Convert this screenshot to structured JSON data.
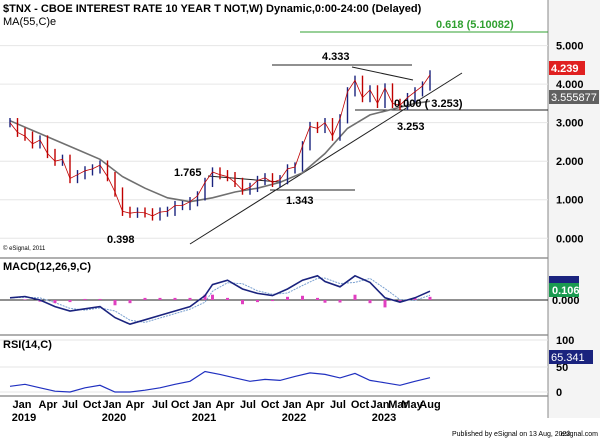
{
  "chart_data": [
    {
      "type": "line",
      "panel": "price",
      "title": "$TNX - CBOE INTEREST RATE 10 YEAR T NOT,W) Dynamic,0:00-24:00 (Delayed)",
      "indicator_label": "MA(55,C)e",
      "copyright": "© eSignal, 2011",
      "ylim": [
        -0.2,
        5.3
      ],
      "y_ticks": [
        "5.000",
        "4.000",
        "3.000",
        "2.000",
        "1.000",
        "0.000"
      ],
      "x_ticks": [
        "Jan",
        "Apr",
        "Jul",
        "Oct",
        "Jan",
        "Apr",
        "Jul",
        "Oct",
        "Jan",
        "Apr",
        "Jul",
        "Oct",
        "Jan",
        "Apr",
        "Jul",
        "Oct",
        "Jan",
        "Mar",
        "May",
        "Aug"
      ],
      "x_years": [
        "2019",
        "2020",
        "2021",
        "2022",
        "2023"
      ],
      "series": [
        {
          "name": "price",
          "color": "#c00000",
          "x": [
            "2018-12",
            "2019-01",
            "2019-02",
            "2019-03",
            "2019-04",
            "2019-05",
            "2019-06",
            "2019-07",
            "2019-08",
            "2019-09",
            "2019-10",
            "2019-11",
            "2019-12",
            "2020-01",
            "2020-02",
            "2020-03",
            "2020-04",
            "2020-05",
            "2020-06",
            "2020-07",
            "2020-08",
            "2020-09",
            "2020-10",
            "2020-11",
            "2020-12",
            "2021-01",
            "2021-02",
            "2021-03",
            "2021-04",
            "2021-05",
            "2021-06",
            "2021-07",
            "2021-08",
            "2021-09",
            "2021-10",
            "2021-11",
            "2021-12",
            "2022-01",
            "2022-02",
            "2022-03",
            "2022-04",
            "2022-05",
            "2022-06",
            "2022-07",
            "2022-08",
            "2022-09",
            "2022-10",
            "2022-11",
            "2022-12",
            "2023-01",
            "2023-02",
            "2023-03",
            "2023-04",
            "2023-05",
            "2023-06",
            "2023-07",
            "2023-08"
          ],
          "values": [
            3.0,
            2.75,
            2.65,
            2.45,
            2.55,
            2.2,
            2.0,
            2.05,
            1.55,
            1.65,
            1.75,
            1.8,
            1.9,
            1.6,
            1.2,
            0.7,
            0.65,
            0.68,
            0.66,
            0.58,
            0.68,
            0.7,
            0.85,
            0.85,
            0.95,
            1.1,
            1.45,
            1.72,
            1.65,
            1.6,
            1.45,
            1.25,
            1.32,
            1.5,
            1.57,
            1.45,
            1.52,
            1.8,
            1.85,
            2.4,
            2.9,
            2.85,
            3.0,
            2.65,
            3.1,
            3.8,
            4.1,
            3.65,
            3.85,
            3.5,
            3.9,
            3.5,
            3.45,
            3.65,
            3.8,
            3.95,
            4.239
          ]
        },
        {
          "name": "MA(55,C)e",
          "color": "#707070",
          "x": [
            "2018-12",
            "2019-03",
            "2019-06",
            "2019-09",
            "2019-12",
            "2020-03",
            "2020-06",
            "2020-09",
            "2020-12",
            "2021-03",
            "2021-06",
            "2021-09",
            "2021-12",
            "2022-03",
            "2022-06",
            "2022-09",
            "2022-12",
            "2023-03",
            "2023-06",
            "2023-08"
          ],
          "values": [
            3.05,
            2.8,
            2.55,
            2.3,
            2.05,
            1.6,
            1.3,
            1.05,
            0.95,
            1.05,
            1.2,
            1.3,
            1.45,
            1.7,
            2.2,
            2.85,
            3.2,
            3.35,
            3.5,
            3.555877
          ]
        }
      ],
      "annotations": [
        {
          "text": "0.398",
          "value": 0.398
        },
        {
          "text": "1.765",
          "value": 1.765
        },
        {
          "text": "1.343",
          "value": 1.343
        },
        {
          "text": "4.333",
          "value": 4.333
        },
        {
          "text": "3.253",
          "value": 3.253
        },
        {
          "text": "0.000 ( 3.253)",
          "value": 3.253
        },
        {
          "text": "0.618 (5.10082)",
          "value": 5.10082
        }
      ],
      "value_labels": [
        {
          "text": "4.239",
          "color": "#e02020"
        },
        {
          "text": "3.555877",
          "color": "#606060"
        }
      ]
    },
    {
      "type": "line",
      "panel": "macd",
      "title": "MACD(12,26,9,C)",
      "y_ticks": [
        "0.000"
      ],
      "value_labels": [
        {
          "text": "0.106",
          "color": "#1a9a50"
        }
      ],
      "series": [
        {
          "name": "MACD",
          "color": "#1a237e",
          "x": [
            "2018-12",
            "2019-02",
            "2019-04",
            "2019-06",
            "2019-08",
            "2019-10",
            "2019-12",
            "2020-02",
            "2020-04",
            "2020-06",
            "2020-08",
            "2020-10",
            "2020-12",
            "2021-02",
            "2021-03",
            "2021-05",
            "2021-07",
            "2021-09",
            "2021-11",
            "2022-01",
            "2022-03",
            "2022-05",
            "2022-06",
            "2022-08",
            "2022-10",
            "2022-12",
            "2023-02",
            "2023-04",
            "2023-06",
            "2023-08"
          ],
          "values": [
            0.05,
            0.08,
            0.0,
            -0.15,
            -0.25,
            -0.2,
            -0.15,
            -0.4,
            -0.55,
            -0.45,
            -0.35,
            -0.25,
            -0.15,
            0.1,
            0.35,
            0.45,
            0.25,
            0.15,
            0.1,
            0.25,
            0.45,
            0.55,
            0.42,
            0.3,
            0.55,
            0.4,
            0.05,
            -0.05,
            0.05,
            0.2
          ]
        }
      ]
    },
    {
      "type": "line",
      "panel": "rsi",
      "title": "RSI(14,C)",
      "ylim": [
        0,
        100
      ],
      "y_ticks": [
        "100",
        "50",
        "0"
      ],
      "value_labels": [
        {
          "text": "65.341",
          "color": "#1a237e"
        }
      ],
      "series": [
        {
          "name": "RSI",
          "color": "#2030c0",
          "x": [
            "2018-12",
            "2019-02",
            "2019-04",
            "2019-06",
            "2019-08",
            "2019-10",
            "2019-12",
            "2020-02",
            "2020-04",
            "2020-06",
            "2020-08",
            "2020-10",
            "2020-12",
            "2021-02",
            "2021-04",
            "2021-06",
            "2021-08",
            "2021-10",
            "2021-12",
            "2022-02",
            "2022-04",
            "2022-06",
            "2022-08",
            "2022-10",
            "2022-12",
            "2023-02",
            "2023-04",
            "2023-06",
            "2023-08"
          ],
          "values": [
            48,
            52,
            45,
            38,
            32,
            45,
            50,
            35,
            30,
            40,
            45,
            52,
            58,
            78,
            72,
            65,
            58,
            62,
            60,
            68,
            75,
            72,
            65,
            74,
            60,
            55,
            50,
            58,
            65.341
          ]
        }
      ]
    }
  ],
  "footer": {
    "publisher": "Published by eSignal on 13 Aug, 2023",
    "brand": "esignal.com"
  }
}
